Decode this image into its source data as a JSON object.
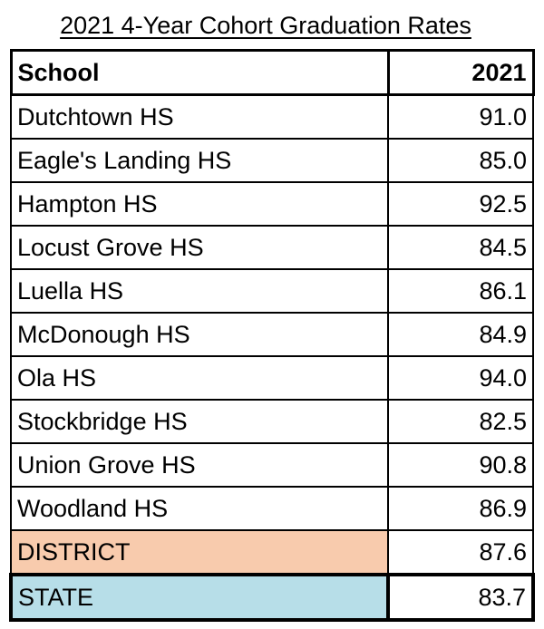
{
  "header": {
    "title": "2021 4-Year Cohort Graduation Rates"
  },
  "table": {
    "columns": [
      "School",
      "2021"
    ],
    "rows": [
      [
        "Dutchtown HS",
        "91.0"
      ],
      [
        "Eagle's Landing HS",
        "85.0"
      ],
      [
        "Hampton HS",
        "92.5"
      ],
      [
        "Locust Grove HS",
        "84.5"
      ],
      [
        "Luella HS",
        "86.1"
      ],
      [
        "McDonough HS",
        "84.9"
      ],
      [
        "Ola HS",
        "94.0"
      ],
      [
        "Stockbridge HS",
        "82.5"
      ],
      [
        "Union Grove HS",
        "90.8"
      ],
      [
        "Woodland HS",
        "86.9"
      ],
      [
        "DISTRICT",
        "87.6"
      ],
      [
        "STATE",
        "83.7"
      ]
    ]
  }
}
